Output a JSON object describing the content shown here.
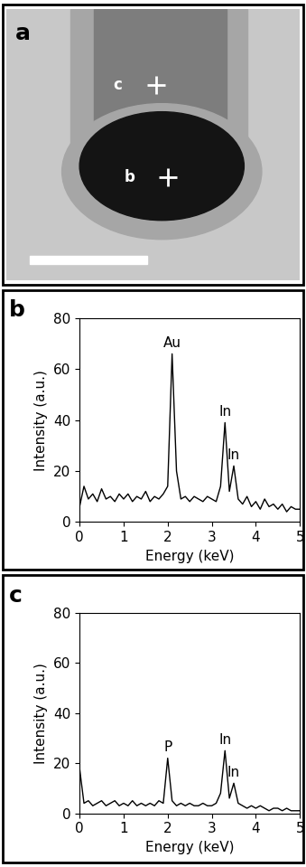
{
  "image": {
    "panel_label": "a",
    "points": [
      {
        "label": "c"
      },
      {
        "label": "b"
      }
    ]
  },
  "chart_data": [
    {
      "type": "line",
      "title": "b",
      "x_label": "Energy (keV)",
      "y_label": "Intensity (a.u.)",
      "x": [
        0.0,
        0.1,
        0.2,
        0.3,
        0.4,
        0.5,
        0.6,
        0.7,
        0.8,
        0.9,
        1.0,
        1.1,
        1.2,
        1.3,
        1.4,
        1.5,
        1.6,
        1.7,
        1.8,
        1.9,
        2.0,
        2.1,
        2.2,
        2.3,
        2.4,
        2.5,
        2.6,
        2.7,
        2.8,
        2.9,
        3.0,
        3.1,
        3.2,
        3.3,
        3.4,
        3.5,
        3.6,
        3.7,
        3.8,
        3.9,
        4.0,
        4.1,
        4.2,
        4.3,
        4.4,
        4.5,
        4.6,
        4.7,
        4.8,
        4.9,
        5.0
      ],
      "values": [
        6,
        14,
        9,
        11,
        8,
        13,
        9,
        10,
        8,
        11,
        9,
        11,
        8,
        10,
        9,
        12,
        8,
        10,
        9,
        11,
        14,
        66,
        20,
        9,
        10,
        8,
        10,
        9,
        8,
        10,
        9,
        8,
        14,
        39,
        12,
        22,
        9,
        7,
        10,
        6,
        8,
        5,
        9,
        6,
        7,
        5,
        7,
        4,
        6,
        5,
        5
      ],
      "color": "#000000",
      "annotations": [
        {
          "text": "Au",
          "x": 2.1
        },
        {
          "text": "In",
          "x": 3.3
        },
        {
          "text": "In",
          "x": 3.5
        }
      ],
      "xlim": [
        0,
        5
      ],
      "xticks": [
        0,
        1,
        2,
        3,
        4,
        5
      ],
      "ylim": [
        0,
        80
      ],
      "yticks": [
        0,
        20,
        40,
        60,
        80
      ]
    },
    {
      "type": "line",
      "title": "c",
      "x_label": "Energy (keV)",
      "y_label": "Intensity (a.u.)",
      "x": [
        0.0,
        0.1,
        0.2,
        0.3,
        0.4,
        0.5,
        0.6,
        0.7,
        0.8,
        0.9,
        1.0,
        1.1,
        1.2,
        1.3,
        1.4,
        1.5,
        1.6,
        1.7,
        1.8,
        1.9,
        2.0,
        2.1,
        2.2,
        2.3,
        2.4,
        2.5,
        2.6,
        2.7,
        2.8,
        2.9,
        3.0,
        3.1,
        3.2,
        3.3,
        3.4,
        3.5,
        3.6,
        3.7,
        3.8,
        3.9,
        4.0,
        4.1,
        4.2,
        4.3,
        4.4,
        4.5,
        4.6,
        4.7,
        4.8,
        4.9,
        5.0
      ],
      "values": [
        18,
        4,
        5,
        3,
        4,
        5,
        3,
        4,
        5,
        3,
        4,
        3,
        5,
        3,
        4,
        3,
        4,
        3,
        5,
        4,
        22,
        5,
        3,
        4,
        3,
        4,
        3,
        3,
        4,
        3,
        3,
        4,
        8,
        25,
        6,
        12,
        4,
        3,
        2,
        3,
        2,
        3,
        2,
        1,
        2,
        2,
        1,
        2,
        1,
        1,
        1
      ],
      "color": "#000000",
      "annotations": [
        {
          "text": "P",
          "x": 2.0
        },
        {
          "text": "In",
          "x": 3.3
        },
        {
          "text": "In",
          "x": 3.5
        }
      ],
      "xlim": [
        0,
        5
      ],
      "xticks": [
        0,
        1,
        2,
        3,
        4,
        5
      ],
      "ylim": [
        0,
        80
      ],
      "yticks": [
        0,
        20,
        40,
        60,
        80
      ]
    }
  ]
}
